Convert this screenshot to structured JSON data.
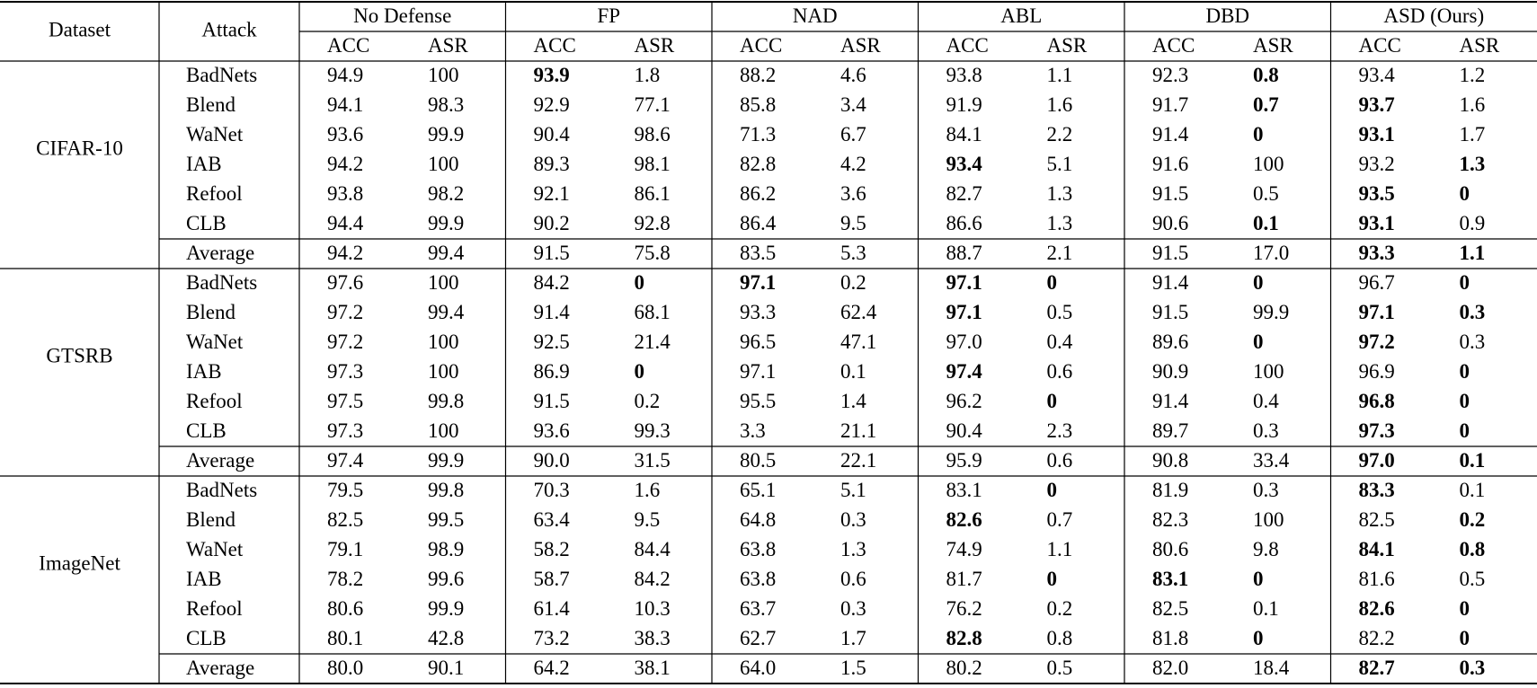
{
  "header": {
    "dataset": "Dataset",
    "attack": "Attack",
    "defenses": [
      "No Defense",
      "FP",
      "NAD",
      "ABL",
      "DBD",
      "ASD (Ours)"
    ],
    "metrics": [
      "ACC",
      "ASR",
      "ACC",
      "ASR",
      "ACC",
      "ASR",
      "ACC",
      "ASR",
      "ACC",
      "ASR",
      "ACC",
      "ASR"
    ]
  },
  "blocks": [
    {
      "dataset": "CIFAR-10",
      "rows": [
        {
          "attack": "BadNets",
          "values": [
            "94.9",
            "100",
            "93.9",
            "1.8",
            "88.2",
            "4.6",
            "93.8",
            "1.1",
            "92.3",
            "0.8",
            "93.4",
            "1.2"
          ],
          "bold": [
            2,
            9
          ]
        },
        {
          "attack": "Blend",
          "values": [
            "94.1",
            "98.3",
            "92.9",
            "77.1",
            "85.8",
            "3.4",
            "91.9",
            "1.6",
            "91.7",
            "0.7",
            "93.7",
            "1.6"
          ],
          "bold": [
            9,
            10
          ]
        },
        {
          "attack": "WaNet",
          "values": [
            "93.6",
            "99.9",
            "90.4",
            "98.6",
            "71.3",
            "6.7",
            "84.1",
            "2.2",
            "91.4",
            "0",
            "93.1",
            "1.7"
          ],
          "bold": [
            9,
            10
          ]
        },
        {
          "attack": "IAB",
          "values": [
            "94.2",
            "100",
            "89.3",
            "98.1",
            "82.8",
            "4.2",
            "93.4",
            "5.1",
            "91.6",
            "100",
            "93.2",
            "1.3"
          ],
          "bold": [
            6,
            11
          ]
        },
        {
          "attack": "Refool",
          "values": [
            "93.8",
            "98.2",
            "92.1",
            "86.1",
            "86.2",
            "3.6",
            "82.7",
            "1.3",
            "91.5",
            "0.5",
            "93.5",
            "0"
          ],
          "bold": [
            10,
            11
          ]
        },
        {
          "attack": "CLB",
          "values": [
            "94.4",
            "99.9",
            "90.2",
            "92.8",
            "86.4",
            "9.5",
            "86.6",
            "1.3",
            "90.6",
            "0.1",
            "93.1",
            "0.9"
          ],
          "bold": [
            9,
            10
          ]
        },
        {
          "attack": "Average",
          "values": [
            "94.2",
            "99.4",
            "91.5",
            "75.8",
            "83.5",
            "5.3",
            "88.7",
            "2.1",
            "91.5",
            "17.0",
            "93.3",
            "1.1"
          ],
          "bold": [
            10,
            11
          ]
        }
      ]
    },
    {
      "dataset": "GTSRB",
      "rows": [
        {
          "attack": "BadNets",
          "values": [
            "97.6",
            "100",
            "84.2",
            "0",
            "97.1",
            "0.2",
            "97.1",
            "0",
            "91.4",
            "0",
            "96.7",
            "0"
          ],
          "bold": [
            3,
            4,
            6,
            7,
            9,
            11
          ]
        },
        {
          "attack": "Blend",
          "values": [
            "97.2",
            "99.4",
            "91.4",
            "68.1",
            "93.3",
            "62.4",
            "97.1",
            "0.5",
            "91.5",
            "99.9",
            "97.1",
            "0.3"
          ],
          "bold": [
            6,
            10,
            11
          ]
        },
        {
          "attack": "WaNet",
          "values": [
            "97.2",
            "100",
            "92.5",
            "21.4",
            "96.5",
            "47.1",
            "97.0",
            "0.4",
            "89.6",
            "0",
            "97.2",
            "0.3"
          ],
          "bold": [
            9,
            10
          ]
        },
        {
          "attack": "IAB",
          "values": [
            "97.3",
            "100",
            "86.9",
            "0",
            "97.1",
            "0.1",
            "97.4",
            "0.6",
            "90.9",
            "100",
            "96.9",
            "0"
          ],
          "bold": [
            3,
            6,
            11
          ]
        },
        {
          "attack": "Refool",
          "values": [
            "97.5",
            "99.8",
            "91.5",
            "0.2",
            "95.5",
            "1.4",
            "96.2",
            "0",
            "91.4",
            "0.4",
            "96.8",
            "0"
          ],
          "bold": [
            7,
            10,
            11
          ]
        },
        {
          "attack": "CLB",
          "values": [
            "97.3",
            "100",
            "93.6",
            "99.3",
            "3.3",
            "21.1",
            "90.4",
            "2.3",
            "89.7",
            "0.3",
            "97.3",
            "0"
          ],
          "bold": [
            10,
            11
          ]
        },
        {
          "attack": "Average",
          "values": [
            "97.4",
            "99.9",
            "90.0",
            "31.5",
            "80.5",
            "22.1",
            "95.9",
            "0.6",
            "90.8",
            "33.4",
            "97.0",
            "0.1"
          ],
          "bold": [
            10,
            11
          ]
        }
      ]
    },
    {
      "dataset": "ImageNet",
      "rows": [
        {
          "attack": "BadNets",
          "values": [
            "79.5",
            "99.8",
            "70.3",
            "1.6",
            "65.1",
            "5.1",
            "83.1",
            "0",
            "81.9",
            "0.3",
            "83.3",
            "0.1"
          ],
          "bold": [
            7,
            10
          ]
        },
        {
          "attack": "Blend",
          "values": [
            "82.5",
            "99.5",
            "63.4",
            "9.5",
            "64.8",
            "0.3",
            "82.6",
            "0.7",
            "82.3",
            "100",
            "82.5",
            "0.2"
          ],
          "bold": [
            6,
            11
          ]
        },
        {
          "attack": "WaNet",
          "values": [
            "79.1",
            "98.9",
            "58.2",
            "84.4",
            "63.8",
            "1.3",
            "74.9",
            "1.1",
            "80.6",
            "9.8",
            "84.1",
            "0.8"
          ],
          "bold": [
            10,
            11
          ]
        },
        {
          "attack": "IAB",
          "values": [
            "78.2",
            "99.6",
            "58.7",
            "84.2",
            "63.8",
            "0.6",
            "81.7",
            "0",
            "83.1",
            "0",
            "81.6",
            "0.5"
          ],
          "bold": [
            7,
            8,
            9
          ]
        },
        {
          "attack": "Refool",
          "values": [
            "80.6",
            "99.9",
            "61.4",
            "10.3",
            "63.7",
            "0.3",
            "76.2",
            "0.2",
            "82.5",
            "0.1",
            "82.6",
            "0"
          ],
          "bold": [
            10,
            11
          ]
        },
        {
          "attack": "CLB",
          "values": [
            "80.1",
            "42.8",
            "73.2",
            "38.3",
            "62.7",
            "1.7",
            "82.8",
            "0.8",
            "81.8",
            "0",
            "82.2",
            "0"
          ],
          "bold": [
            6,
            9,
            11
          ]
        },
        {
          "attack": "Average",
          "values": [
            "80.0",
            "90.1",
            "64.2",
            "38.1",
            "64.0",
            "1.5",
            "80.2",
            "0.5",
            "82.0",
            "18.4",
            "82.7",
            "0.3"
          ],
          "bold": [
            10,
            11
          ]
        }
      ]
    }
  ]
}
